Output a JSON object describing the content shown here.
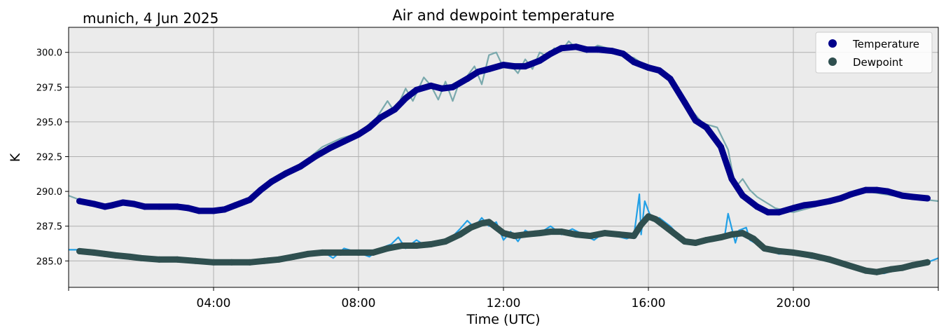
{
  "header": {
    "location_date": "munich, 4 Jun 2025"
  },
  "chart_data": {
    "type": "line",
    "title": "Air and dewpoint temperature",
    "xlabel": "Time (UTC)",
    "ylabel": "K",
    "x_unit": "hours",
    "xlim": [
      0,
      24
    ],
    "ylim": [
      283.1,
      301.8
    ],
    "x_ticks": [
      0,
      4,
      8,
      12,
      16,
      20,
      24
    ],
    "x_tick_labels": [
      "",
      "04:00",
      "08:00",
      "12:00",
      "16:00",
      "20:00",
      ""
    ],
    "y_ticks": [
      285.0,
      287.5,
      290.0,
      292.5,
      295.0,
      297.5,
      300.0
    ],
    "y_tick_labels": [
      "285.0",
      "287.5",
      "290.0",
      "292.5",
      "295.0",
      "297.5",
      "300.0"
    ],
    "grid": true,
    "legend_position": "top-right",
    "background": "#ebebeb",
    "series": [
      {
        "name": "Temperature",
        "style": "markers",
        "color": "#00008b",
        "x": [
          0.3,
          0.7,
          1.0,
          1.2,
          1.5,
          1.8,
          2.1,
          2.5,
          3.0,
          3.3,
          3.6,
          4.0,
          4.3,
          4.6,
          5.0,
          5.3,
          5.6,
          6.0,
          6.4,
          6.8,
          7.2,
          7.6,
          8.0,
          8.3,
          8.6,
          9.0,
          9.3,
          9.6,
          10.0,
          10.3,
          10.6,
          11.0,
          11.3,
          11.6,
          12.0,
          12.3,
          12.6,
          13.0,
          13.3,
          13.6,
          14.0,
          14.3,
          14.6,
          15.0,
          15.3,
          15.6,
          16.0,
          16.3,
          16.6,
          17.0,
          17.3,
          17.6,
          18.0,
          18.3,
          18.6,
          19.0,
          19.3,
          19.6,
          20.0,
          20.3,
          20.6,
          21.0,
          21.3,
          21.6,
          22.0,
          22.3,
          22.6,
          23.0,
          23.3,
          23.7
        ],
        "y": [
          289.3,
          289.1,
          288.9,
          289.0,
          289.2,
          289.1,
          288.9,
          288.9,
          288.9,
          288.8,
          288.6,
          288.6,
          288.7,
          289.0,
          289.4,
          290.1,
          290.7,
          291.3,
          291.8,
          292.5,
          293.1,
          293.6,
          294.1,
          294.6,
          295.3,
          295.9,
          296.7,
          297.3,
          297.6,
          297.4,
          297.5,
          298.1,
          298.6,
          298.8,
          299.1,
          299.0,
          299.0,
          299.4,
          299.9,
          300.3,
          300.4,
          300.2,
          300.2,
          300.1,
          299.9,
          299.3,
          298.9,
          298.7,
          298.1,
          296.4,
          295.1,
          294.6,
          293.2,
          290.9,
          289.7,
          288.9,
          288.5,
          288.5,
          288.8,
          289.0,
          289.1,
          289.3,
          289.5,
          289.8,
          290.1,
          290.1,
          290.0,
          289.7,
          289.6,
          289.5
        ]
      },
      {
        "name": "Dewpoint",
        "style": "markers",
        "color": "#2f4f4f",
        "x": [
          0.3,
          0.7,
          1.0,
          1.3,
          1.7,
          2.0,
          2.5,
          3.0,
          3.5,
          4.0,
          4.5,
          5.0,
          5.4,
          5.8,
          6.2,
          6.6,
          7.0,
          7.5,
          8.0,
          8.4,
          8.8,
          9.2,
          9.6,
          10.0,
          10.4,
          10.8,
          11.1,
          11.4,
          11.6,
          11.8,
          12.0,
          12.3,
          12.6,
          13.0,
          13.3,
          13.6,
          14.0,
          14.4,
          14.8,
          15.2,
          15.6,
          15.8,
          16.0,
          16.2,
          16.4,
          16.7,
          17.0,
          17.3,
          17.6,
          18.0,
          18.3,
          18.6,
          18.9,
          19.2,
          19.6,
          20.0,
          20.5,
          21.0,
          21.5,
          22.0,
          22.3,
          22.7,
          23.0,
          23.3,
          23.7
        ],
        "y": [
          285.7,
          285.6,
          285.5,
          285.4,
          285.3,
          285.2,
          285.1,
          285.1,
          285.0,
          284.9,
          284.9,
          284.9,
          285.0,
          285.1,
          285.3,
          285.5,
          285.6,
          285.6,
          285.6,
          285.6,
          285.9,
          286.1,
          286.1,
          286.2,
          286.4,
          286.9,
          287.4,
          287.7,
          287.8,
          287.4,
          287.0,
          286.8,
          286.9,
          287.0,
          287.1,
          287.1,
          286.9,
          286.8,
          287.0,
          286.9,
          286.8,
          287.6,
          288.2,
          288.0,
          287.6,
          287.0,
          286.4,
          286.3,
          286.5,
          286.7,
          286.9,
          287.0,
          286.6,
          285.9,
          285.7,
          285.6,
          285.4,
          285.1,
          284.7,
          284.3,
          284.2,
          284.4,
          284.5,
          284.7,
          284.9
        ]
      },
      {
        "name": "",
        "style": "raw-line",
        "color": "#7aa9ad",
        "x": [
          0.0,
          0.3,
          0.7,
          1.0,
          1.5,
          2.0,
          2.5,
          3.0,
          3.5,
          4.0,
          4.5,
          5.0,
          5.5,
          6.0,
          6.5,
          7.0,
          7.5,
          8.0,
          8.5,
          8.8,
          9.0,
          9.3,
          9.5,
          9.8,
          10.0,
          10.2,
          10.4,
          10.6,
          10.8,
          11.0,
          11.2,
          11.4,
          11.6,
          11.8,
          12.0,
          12.2,
          12.4,
          12.6,
          12.8,
          13.0,
          13.2,
          13.4,
          13.6,
          13.8,
          14.0,
          14.3,
          14.6,
          15.0,
          15.3,
          15.6,
          16.0,
          16.5,
          17.0,
          17.5,
          17.9,
          18.2,
          18.4,
          18.6,
          18.8,
          19.0,
          19.5,
          20.0,
          21.0,
          22.0,
          23.0,
          24.0
        ],
        "y": [
          289.7,
          289.4,
          289.2,
          289.0,
          289.3,
          288.9,
          288.9,
          288.9,
          288.7,
          288.6,
          288.8,
          289.4,
          290.3,
          291.3,
          292.1,
          293.2,
          293.8,
          294.2,
          295.3,
          296.5,
          295.7,
          297.4,
          296.5,
          298.2,
          297.6,
          296.6,
          297.9,
          296.5,
          298.0,
          298.3,
          299.0,
          297.7,
          299.8,
          300.0,
          298.9,
          299.1,
          298.5,
          299.5,
          298.8,
          300.0,
          299.7,
          300.3,
          300.1,
          300.8,
          300.3,
          300.0,
          300.5,
          300.2,
          299.8,
          299.6,
          298.9,
          298.5,
          296.4,
          294.9,
          294.6,
          293.0,
          290.3,
          290.9,
          290.1,
          289.6,
          288.8,
          288.5,
          289.2,
          290.0,
          289.6,
          289.3
        ]
      },
      {
        "name": "",
        "style": "raw-line",
        "color": "#22a0e6",
        "x": [
          0.0,
          0.3,
          0.8,
          1.3,
          1.8,
          2.3,
          3.0,
          3.5,
          4.0,
          4.5,
          5.0,
          5.5,
          6.0,
          6.5,
          7.0,
          7.3,
          7.6,
          8.0,
          8.3,
          8.6,
          8.9,
          9.1,
          9.3,
          9.6,
          9.9,
          10.2,
          10.5,
          10.8,
          11.0,
          11.2,
          11.4,
          11.6,
          11.8,
          12.0,
          12.2,
          12.4,
          12.6,
          12.8,
          13.0,
          13.3,
          13.6,
          13.9,
          14.2,
          14.5,
          14.8,
          15.1,
          15.4,
          15.6,
          15.75,
          15.8,
          15.9,
          16.0,
          16.1,
          16.3,
          16.6,
          17.0,
          17.4,
          17.8,
          18.1,
          18.2,
          18.4,
          18.5,
          18.7,
          18.8,
          19.0,
          19.3,
          19.6,
          20.0,
          20.5,
          21.0,
          21.5,
          22.0,
          22.5,
          23.0,
          23.5,
          24.0
        ],
        "y": [
          285.8,
          285.8,
          285.5,
          285.4,
          285.3,
          285.2,
          285.1,
          285.1,
          284.9,
          284.9,
          284.9,
          285.0,
          285.2,
          285.4,
          285.7,
          285.2,
          285.9,
          285.6,
          285.3,
          285.9,
          286.2,
          286.7,
          285.9,
          286.5,
          286.0,
          286.4,
          286.5,
          287.3,
          287.9,
          287.4,
          288.1,
          287.5,
          287.8,
          286.5,
          287.1,
          286.4,
          287.2,
          286.9,
          287.0,
          287.5,
          286.9,
          287.3,
          286.9,
          286.5,
          287.1,
          286.8,
          286.6,
          286.8,
          289.8,
          286.9,
          289.3,
          288.6,
          288.0,
          288.1,
          287.5,
          286.4,
          286.3,
          286.5,
          286.7,
          288.4,
          286.3,
          287.2,
          287.4,
          286.5,
          286.2,
          285.8,
          285.5,
          285.6,
          285.2,
          285.1,
          284.7,
          284.2,
          284.1,
          284.5,
          284.7,
          285.2
        ]
      }
    ]
  }
}
